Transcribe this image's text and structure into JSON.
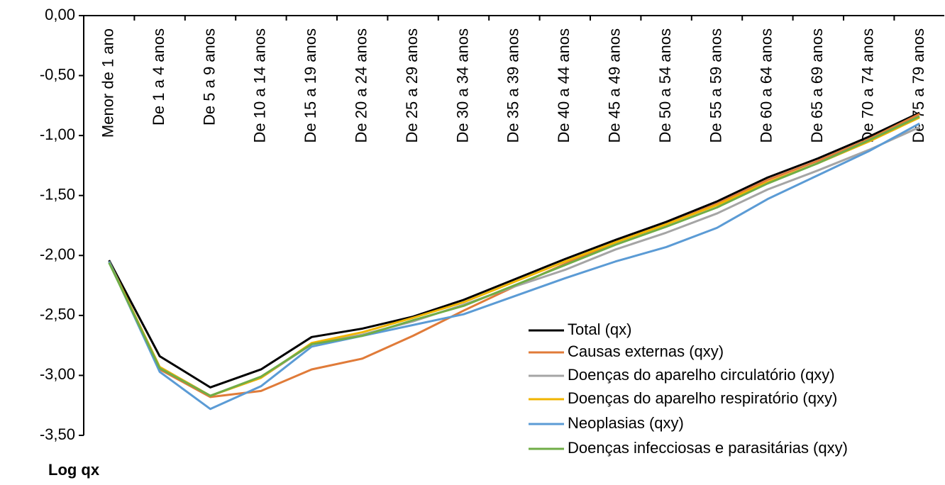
{
  "chart_data": {
    "type": "line",
    "y_label": "Log qx",
    "categories": [
      "Menor de 1 ano",
      "De 1 a 4 anos",
      "De 5 a 9 anos",
      "De 10 a 14 anos",
      "De 15 a 19 anos",
      "De 20 a 24 anos",
      "De 25 a 29 anos",
      "De 30 a 34 anos",
      "De 35 a 39 anos",
      "De 40 a 44 anos",
      "De 45 a 49 anos",
      "De 50 a 54 anos",
      "De 55 a 59 anos",
      "De 60 a 64 anos",
      "De 65 a 69 anos",
      "De 70 a 74 anos",
      "De 75 a 79 anos"
    ],
    "series": [
      {
        "name": "Total (qx)",
        "color": "#000000",
        "values": [
          -2.04,
          -2.84,
          -3.1,
          -2.95,
          -2.68,
          -2.61,
          -2.51,
          -2.37,
          -2.2,
          -2.03,
          -1.87,
          -1.72,
          -1.55,
          -1.35,
          -1.19,
          -1.01,
          -0.81
        ]
      },
      {
        "name": "Causas externas (qxy)",
        "color": "#e07b39",
        "values": [
          -2.05,
          -2.95,
          -3.18,
          -3.13,
          -2.95,
          -2.86,
          -2.67,
          -2.46,
          -2.26,
          -2.07,
          -1.89,
          -1.74,
          -1.57,
          -1.37,
          -1.21,
          -1.03,
          -0.82
        ]
      },
      {
        "name": "Doenças do aparelho circulatório (qxy)",
        "color": "#a5a5a5",
        "values": [
          -2.05,
          -2.93,
          -3.17,
          -3.02,
          -2.74,
          -2.66,
          -2.55,
          -2.41,
          -2.26,
          -2.12,
          -1.95,
          -1.81,
          -1.65,
          -1.45,
          -1.29,
          -1.12,
          -0.93
        ]
      },
      {
        "name": "Doenças do aparelho respiratório (qxy)",
        "color": "#f0b400",
        "values": [
          -2.05,
          -2.93,
          -3.17,
          -3.02,
          -2.73,
          -2.64,
          -2.52,
          -2.39,
          -2.22,
          -2.05,
          -1.89,
          -1.74,
          -1.58,
          -1.39,
          -1.23,
          -1.05,
          -0.85
        ]
      },
      {
        "name": "Neoplasias (qxy)",
        "color": "#5b9bd5",
        "values": [
          -2.05,
          -2.97,
          -3.28,
          -3.09,
          -2.76,
          -2.67,
          -2.58,
          -2.49,
          -2.34,
          -2.19,
          -2.05,
          -1.93,
          -1.77,
          -1.53,
          -1.33,
          -1.13,
          -0.9
        ]
      },
      {
        "name": "Doenças infecciosas e parasitárias (qxy)",
        "color": "#70ad47",
        "values": [
          -2.06,
          -2.94,
          -3.17,
          -3.01,
          -2.74,
          -2.67,
          -2.54,
          -2.42,
          -2.25,
          -2.08,
          -1.91,
          -1.76,
          -1.6,
          -1.4,
          -1.23,
          -1.04,
          -0.84
        ]
      }
    ],
    "ylim": [
      -3.5,
      0
    ],
    "yticks": [
      {
        "value": 0,
        "label": "0,00"
      },
      {
        "value": -0.5,
        "label": "-0,50"
      },
      {
        "value": -1,
        "label": "-1,00"
      },
      {
        "value": -1.5,
        "label": "-1,50"
      },
      {
        "value": -2,
        "label": "-2,00"
      },
      {
        "value": -2.5,
        "label": "-2,50"
      },
      {
        "value": -3,
        "label": "-3,00"
      },
      {
        "value": -3.5,
        "label": "-3,50"
      }
    ],
    "legend": "lower right"
  }
}
